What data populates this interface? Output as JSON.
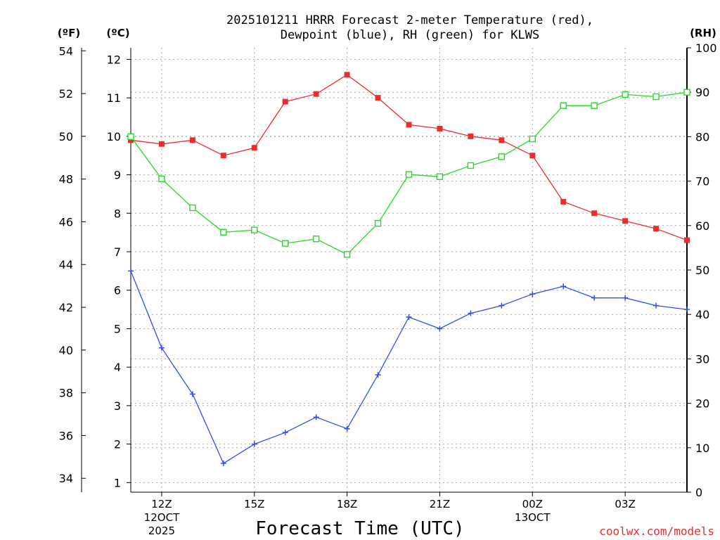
{
  "chart_data": {
    "type": "line",
    "title_line1": "2025101211 HRRR Forecast 2-meter Temperature (red),",
    "title_line2": "Dewpoint (blue), RH (green) for KLWS",
    "xlabel": "Forecast Time (UTC)",
    "watermark": "coolwx.com/models",
    "left_f_label": "(ºF)",
    "left_c_label": "(ºC)",
    "right_label": "(RH)",
    "x_hours": [
      11,
      12,
      13,
      14,
      15,
      16,
      17,
      18,
      19,
      20,
      21,
      22,
      23,
      24,
      25,
      26,
      27,
      28,
      29
    ],
    "xlim": [
      11,
      29
    ],
    "x_ticks": [
      {
        "h": 12,
        "label": "12Z",
        "sub1": "12OCT",
        "sub2": "2025"
      },
      {
        "h": 15,
        "label": "15Z",
        "sub1": "",
        "sub2": ""
      },
      {
        "h": 18,
        "label": "18Z",
        "sub1": "",
        "sub2": ""
      },
      {
        "h": 21,
        "label": "21Z",
        "sub1": "",
        "sub2": ""
      },
      {
        "h": 24,
        "label": "00Z",
        "sub1": "13OCT",
        "sub2": ""
      },
      {
        "h": 27,
        "label": "03Z",
        "sub1": "",
        "sub2": ""
      }
    ],
    "ylim_c": [
      0.75,
      12.3
    ],
    "c_ticks": [
      1,
      2,
      3,
      4,
      5,
      6,
      7,
      8,
      9,
      10,
      11,
      12
    ],
    "f_ticks": [
      34,
      36,
      38,
      40,
      42,
      44,
      46,
      48,
      50,
      52,
      54
    ],
    "rh_ticks": [
      0,
      10,
      20,
      30,
      40,
      50,
      60,
      70,
      80,
      90,
      100
    ],
    "ylim_rh": [
      0,
      100
    ],
    "series": [
      {
        "name": "Temperature",
        "units": "C",
        "color": "#ee2c2c",
        "marker": "filled-square",
        "values": [
          9.9,
          9.8,
          9.9,
          9.5,
          9.7,
          10.9,
          11.1,
          11.6,
          11.0,
          10.3,
          10.2,
          10.0,
          9.9,
          9.5,
          8.3,
          8.0,
          7.8,
          7.6,
          7.3
        ]
      },
      {
        "name": "Dewpoint",
        "units": "C",
        "color": "#2f4fee",
        "marker": "plus",
        "values": [
          6.5,
          4.5,
          3.3,
          1.5,
          2.0,
          2.3,
          2.7,
          2.4,
          3.8,
          5.3,
          5.0,
          5.4,
          5.6,
          5.9,
          6.1,
          5.8,
          5.8,
          5.6,
          5.5
        ]
      },
      {
        "name": "RH",
        "units": "%",
        "color": "#22dd22",
        "marker": "open-square",
        "values": [
          80,
          70.5,
          64,
          58.5,
          59,
          56,
          57,
          53.5,
          60.5,
          71.5,
          71,
          73.5,
          75.5,
          79.5,
          87,
          87,
          89.5,
          89,
          90
        ]
      }
    ]
  }
}
